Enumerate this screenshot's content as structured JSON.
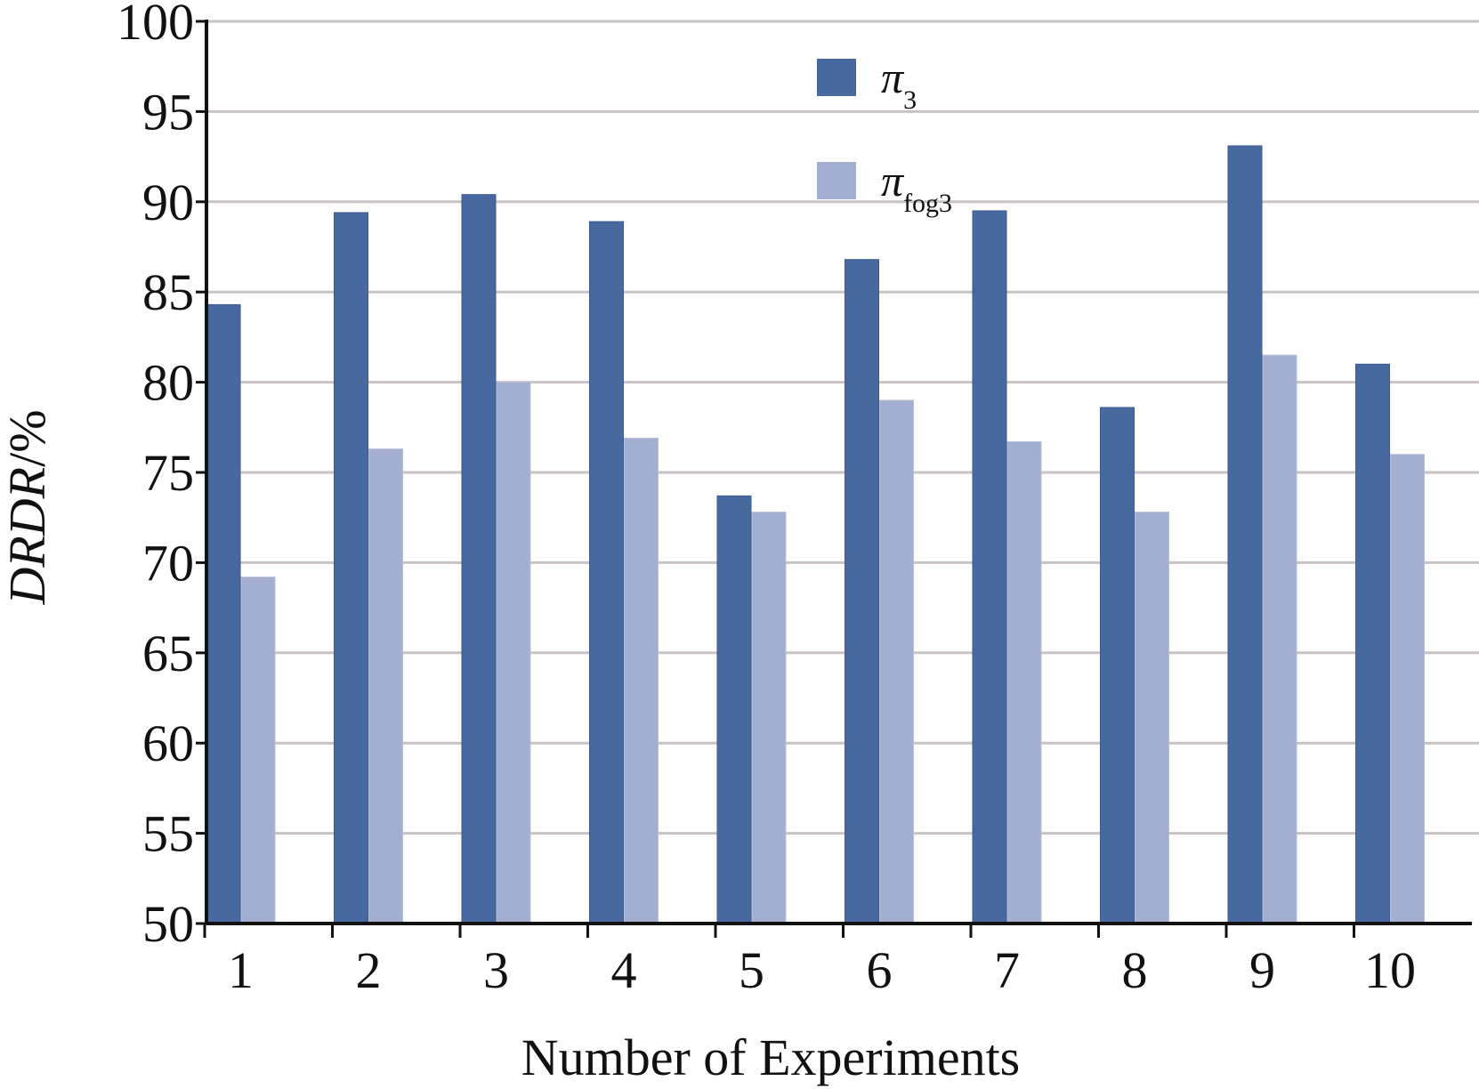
{
  "chart_data": {
    "type": "bar",
    "categories": [
      "1",
      "2",
      "3",
      "4",
      "5",
      "6",
      "7",
      "8",
      "9",
      "10"
    ],
    "series": [
      {
        "name": "π3",
        "name_main": "π",
        "name_sub": "3",
        "color": "#4868a0",
        "values": [
          84.3,
          89.4,
          90.4,
          88.9,
          73.7,
          86.8,
          89.5,
          78.6,
          93.1,
          81.0
        ]
      },
      {
        "name": "πfog3",
        "name_main": "π",
        "name_sub": "fog3",
        "color": "#a3aed0",
        "values": [
          69.2,
          76.3,
          80.0,
          76.9,
          72.8,
          79.0,
          76.7,
          72.8,
          81.5,
          76.0
        ]
      }
    ],
    "xlabel": "Number of Experiments",
    "ylabel_italic": "DRDR",
    "ylabel_suffix": "/%",
    "ylim": [
      50,
      100
    ],
    "yticks": [
      50,
      55,
      60,
      65,
      70,
      75,
      80,
      85,
      90,
      95,
      100
    ],
    "grid": true,
    "legend_position": "top-center"
  }
}
